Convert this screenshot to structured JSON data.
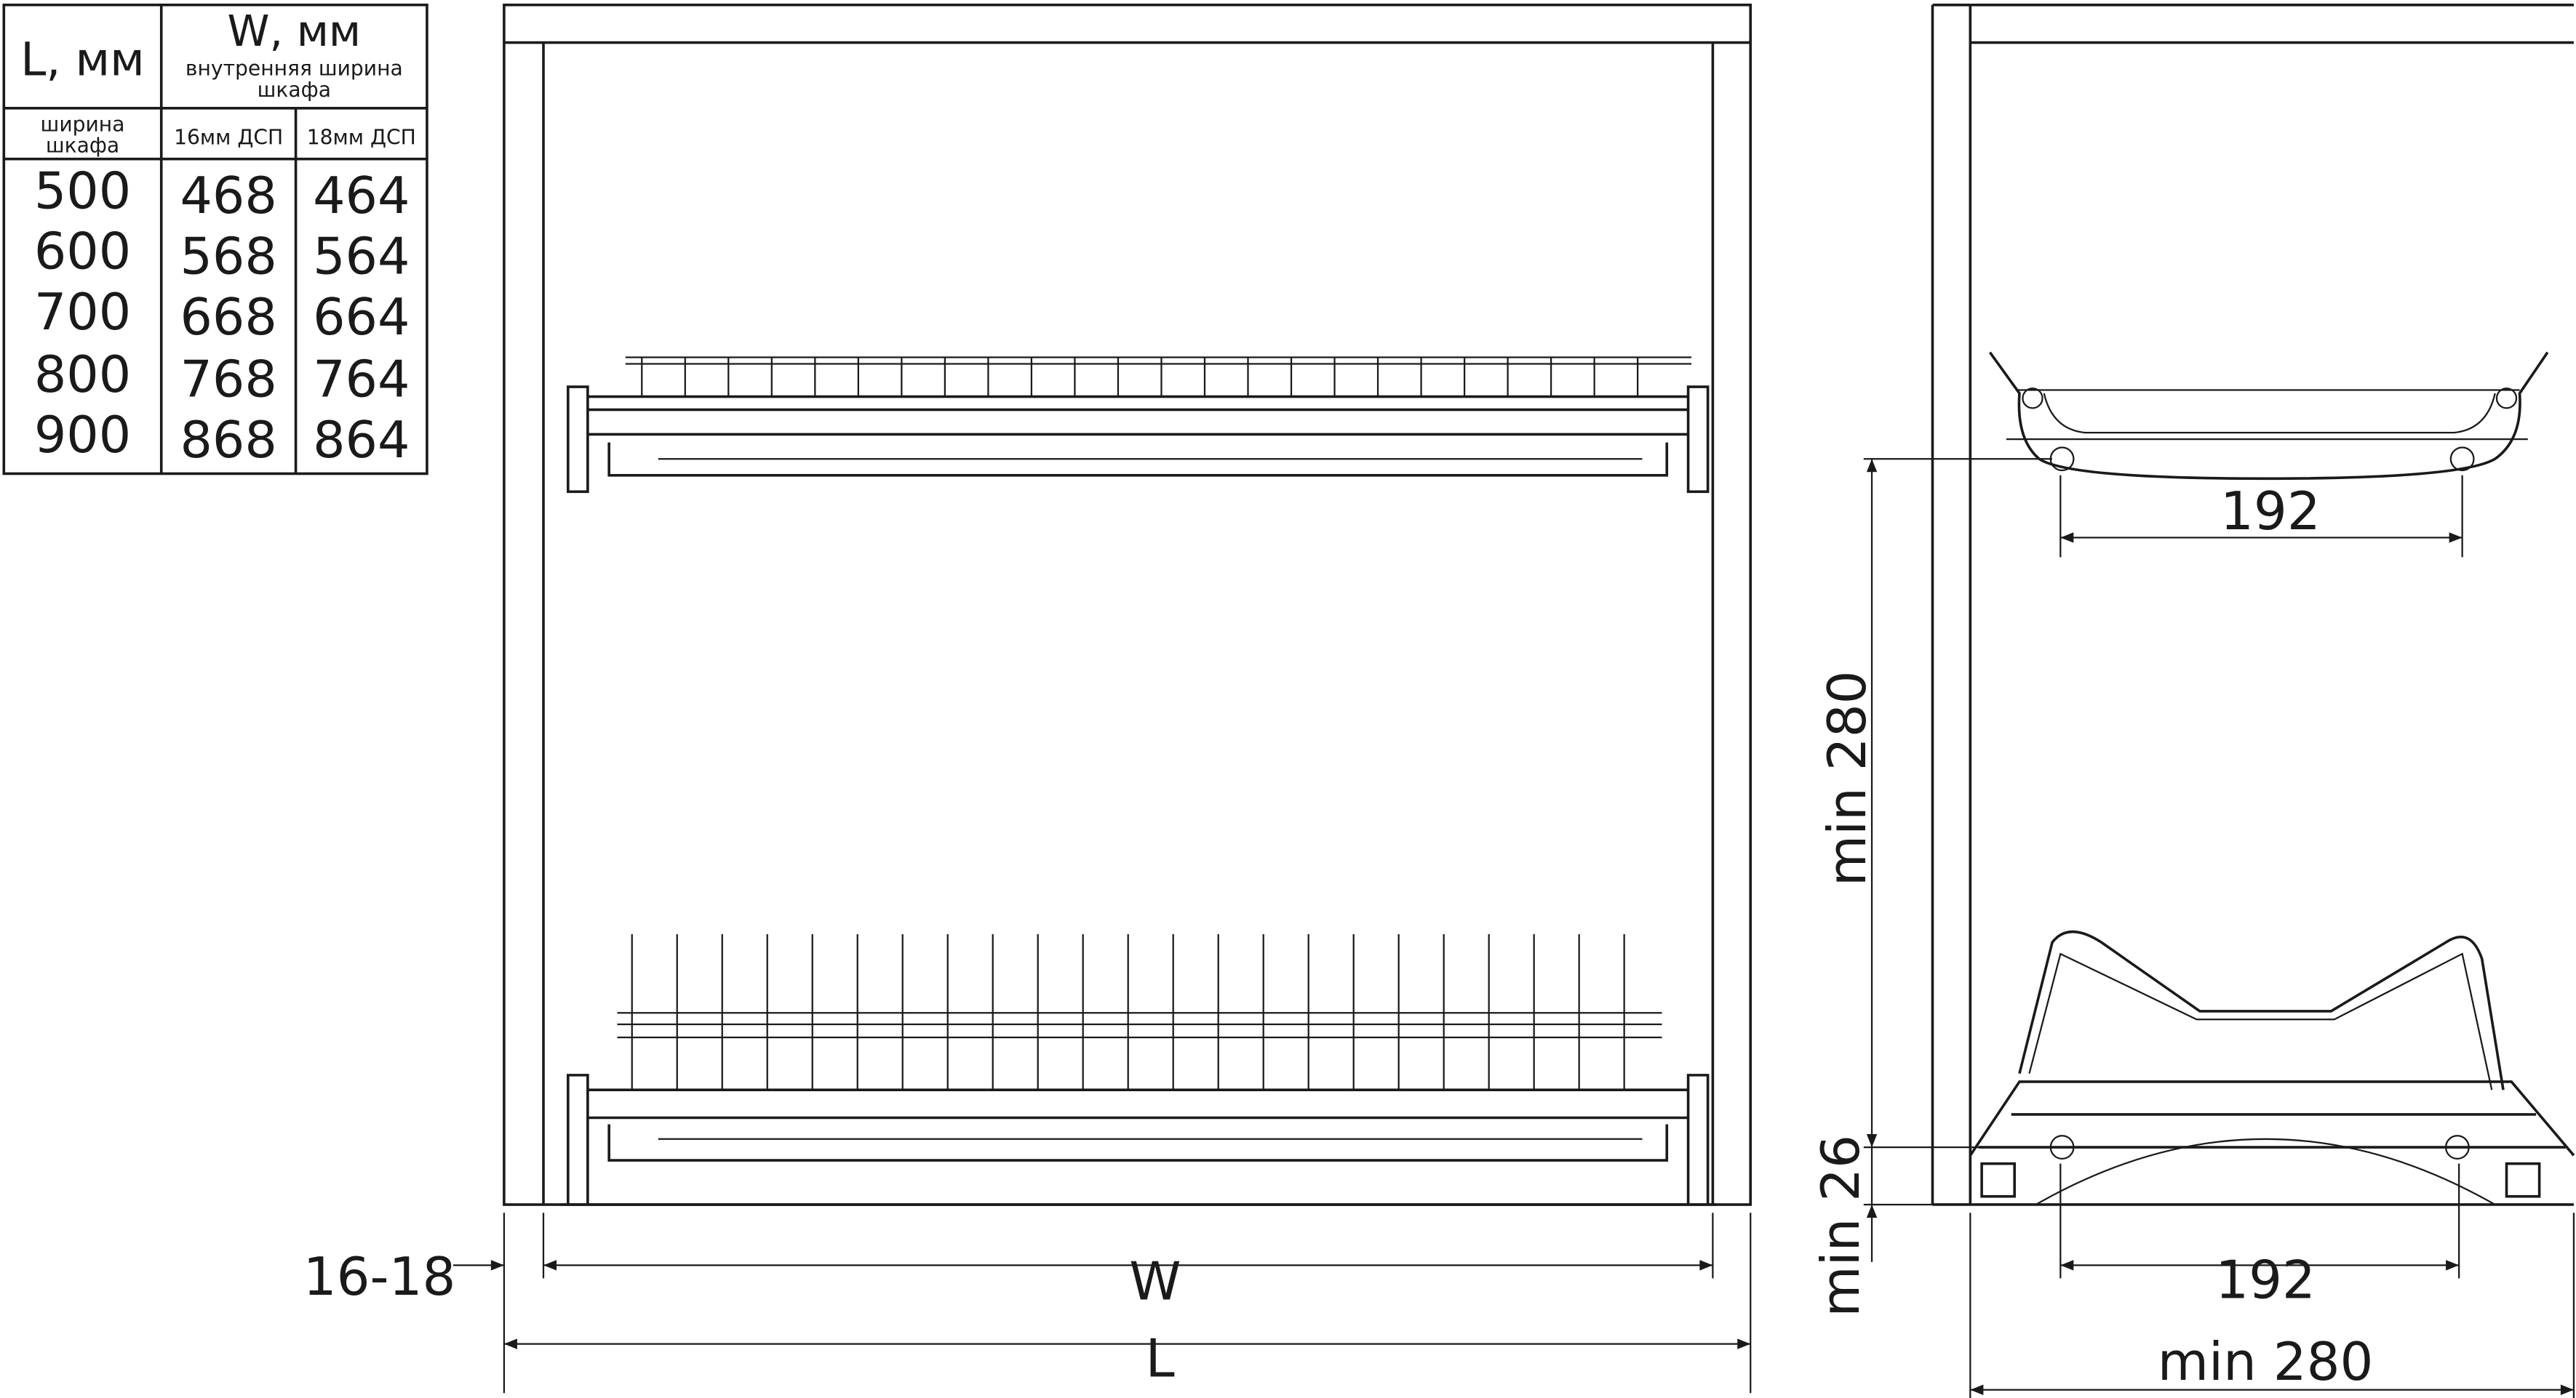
{
  "table": {
    "col_l_header": "L, мм",
    "col_w_header": "W, мм",
    "col_w_sub1": "внутренняя ширина",
    "col_w_sub2": "шкафа",
    "sub_l1": "ширина",
    "sub_l2": "шкафа",
    "sub_16": "16мм ДСП",
    "sub_18": "18мм ДСП",
    "rows": [
      [
        "500",
        "468",
        "464"
      ],
      [
        "600",
        "568",
        "564"
      ],
      [
        "700",
        "668",
        "664"
      ],
      [
        "800",
        "768",
        "764"
      ],
      [
        "900",
        "868",
        "864"
      ]
    ]
  },
  "front_view": {
    "label_w": "W",
    "label_l": "L",
    "label_thickness": "16-18"
  },
  "side_view": {
    "upper_depth": "192",
    "lower_depth": "192",
    "min_width": "min 280",
    "min_height": "min 280",
    "min_bottom": "min 26"
  }
}
